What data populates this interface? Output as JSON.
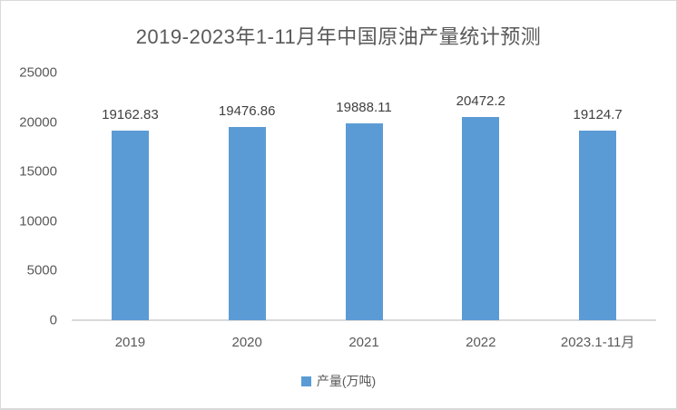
{
  "chart_data": {
    "type": "bar",
    "title": "2019-2023年1-11月年中国原油产量统计预测",
    "categories": [
      "2019",
      "2020",
      "2021",
      "2022",
      "2023.1-11月"
    ],
    "series": [
      {
        "name": "产量(万吨)",
        "values": [
          19162.83,
          19476.86,
          19888.11,
          20472.2,
          19124.7
        ],
        "value_labels": [
          "19162.83",
          "19476.86",
          "19888.11",
          "20472.2",
          "19124.7"
        ]
      }
    ],
    "xlabel": "",
    "ylabel": "",
    "ylim": [
      0,
      25000
    ],
    "yticks": [
      0,
      5000,
      10000,
      15000,
      20000,
      25000
    ],
    "grid": false,
    "legend_position": "bottom",
    "data_labels_shown": true
  },
  "colors": {
    "bar": "#5b9bd5",
    "title_text": "#595959",
    "axis_text": "#595959",
    "value_label_text": "#404040",
    "axis_line": "#d9d9d9"
  }
}
